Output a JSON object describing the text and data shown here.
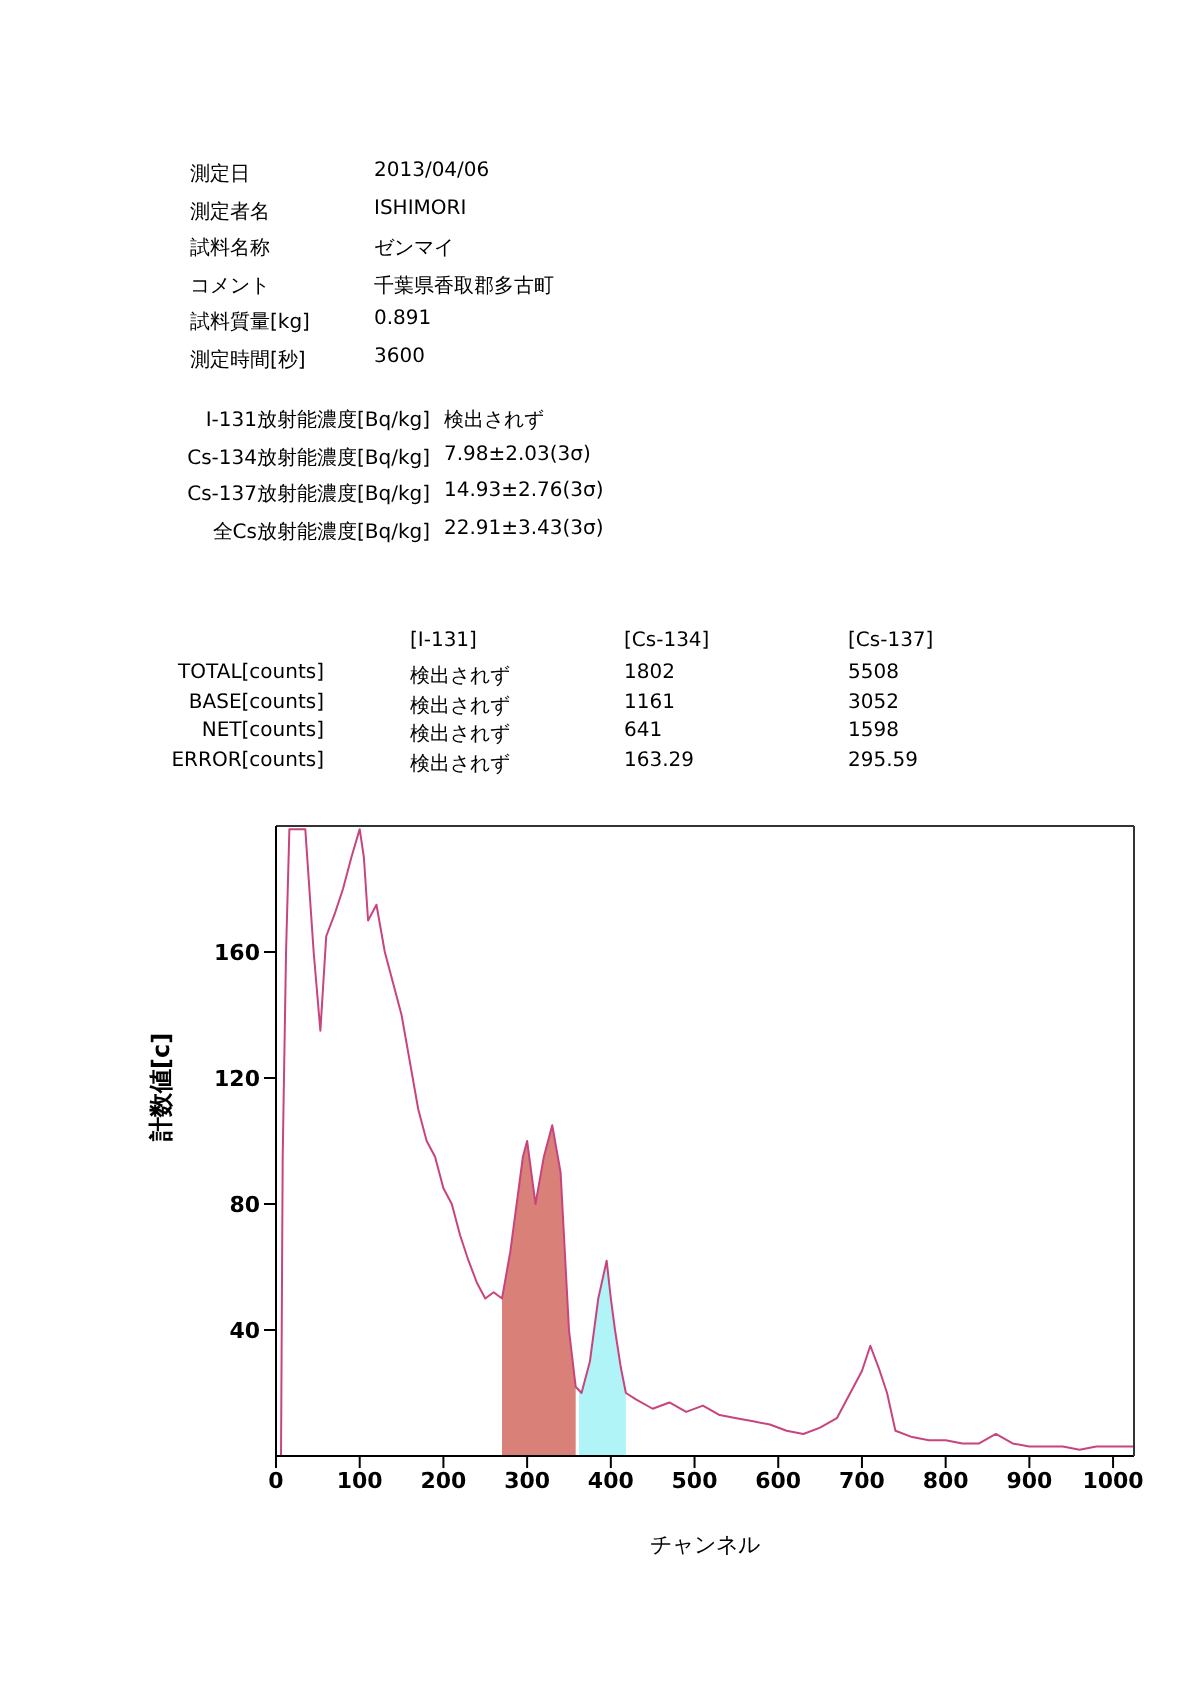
{
  "chart_data": {
    "type": "line",
    "annotations": [
      "測定日",
      "2013/04/06",
      "測定者名",
      "ISHIMORI",
      "試料名称",
      "ゼンマイ",
      "コメント",
      "千葉県香取郡多古町",
      "試料質量[kg]",
      "0.891",
      "測定時間[秒]",
      "3600",
      "I-131放射能濃度[Bq/kg]",
      "検出されず",
      "Cs-134放射能濃度[Bq/kg]",
      "7.98±2.03(3σ)",
      "Cs-137放射能濃度[Bq/kg]",
      "14.93±2.76(3σ)",
      "全Cs放射能濃度[Bq/kg]",
      "22.91±3.43(3σ)",
      "[I-131]",
      "[Cs-134]",
      "[Cs-137]",
      "TOTAL[counts]",
      "検出されず",
      "1802",
      "5508",
      "BASE[counts]",
      "検出されず",
      "1161",
      "3052",
      "NET[counts]",
      "検出されず",
      "641",
      "1598",
      "ERROR[counts]",
      "検出されず",
      "163.29",
      "295.59"
    ],
    "xlabel": "チャンネル",
    "ylabel": "計数値[c]",
    "series": [
      {
        "color": "#c8447e",
        "x": [
          0,
          6,
          8,
          12,
          16,
          20,
          25,
          30,
          35,
          45,
          53,
          60,
          70,
          80,
          90,
          100,
          105,
          110,
          120,
          130,
          140,
          150,
          160,
          170,
          180,
          190,
          200,
          210,
          220,
          230,
          240,
          250,
          260,
          270,
          280,
          290,
          295,
          300,
          310,
          320,
          330,
          340,
          350,
          358,
          365,
          375,
          385,
          395,
          400,
          405,
          412,
          418,
          430,
          450,
          470,
          490,
          510,
          530,
          550,
          570,
          590,
          610,
          630,
          650,
          670,
          690,
          700,
          710,
          720,
          730,
          740,
          760,
          780,
          800,
          820,
          840,
          860,
          880,
          900,
          920,
          940,
          960,
          980,
          1000,
          1025
        ],
        "values": [
          0,
          0,
          95,
          160,
          199,
          199,
          199,
          199,
          199,
          160,
          135,
          165,
          172,
          180,
          190,
          199,
          190,
          170,
          175,
          160,
          150,
          140,
          125,
          110,
          100,
          95,
          85,
          80,
          70,
          62,
          55,
          50,
          52,
          50,
          65,
          85,
          95,
          100,
          80,
          95,
          105,
          90,
          40,
          22,
          20,
          30,
          50,
          62,
          50,
          40,
          28,
          20,
          18,
          15,
          17,
          14,
          16,
          13,
          12,
          11,
          10,
          8,
          7,
          9,
          12,
          22,
          27,
          35,
          28,
          20,
          8,
          6,
          5,
          5,
          4,
          4,
          7,
          4,
          3,
          3,
          3,
          2,
          3,
          3,
          3
        ]
      },
      {
        "type": "area",
        "color": "#d98078",
        "x": [
          270,
          280,
          290,
          295,
          300,
          310,
          320,
          330,
          340,
          350,
          358
        ],
        "values": [
          50,
          65,
          85,
          95,
          100,
          80,
          95,
          105,
          90,
          40,
          22
        ]
      },
      {
        "type": "area",
        "color": "#b0f4f8",
        "x": [
          362,
          365,
          375,
          385,
          395,
          400,
          405,
          412,
          418
        ],
        "values": [
          21,
          20,
          30,
          50,
          62,
          50,
          40,
          28,
          20
        ]
      }
    ],
    "xlim": [
      0,
      1025
    ],
    "xticks": [
      0,
      100,
      200,
      300,
      400,
      500,
      600,
      700,
      800,
      900,
      1000
    ],
    "ylim": [
      0,
      200
    ],
    "yticks": [
      40,
      80,
      120,
      160
    ]
  }
}
